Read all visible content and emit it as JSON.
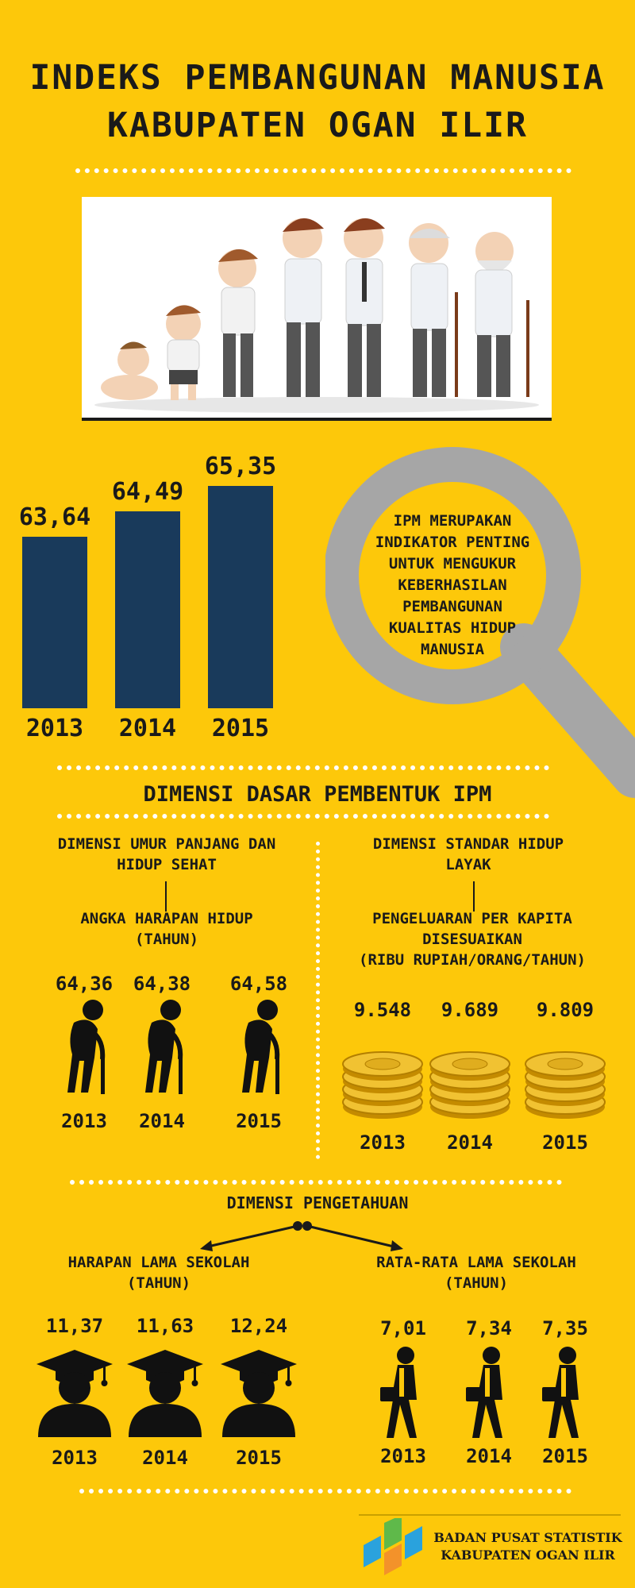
{
  "title": {
    "line1": "INDEKS PEMBANGUNAN MANUSIA",
    "line2": "KABUPATEN OGAN ILIR"
  },
  "colors": {
    "background": "#fdc80a",
    "bar": "#193a5b",
    "glass": "#a6a6a6"
  },
  "chart_data": {
    "type": "bar",
    "categories": [
      "2013",
      "2014",
      "2015"
    ],
    "values": [
      63.64,
      64.49,
      65.35
    ],
    "value_labels": [
      "63,64",
      "64,49",
      "65,35"
    ]
  },
  "magnifier_text": [
    "IPM MERUPAKAN",
    "INDIKATOR PENTING",
    "UNTUK MENGUKUR",
    "KEBERHASILAN",
    "PEMBANGUNAN",
    "KUALITAS HIDUP",
    "MANUSIA"
  ],
  "dimensions_heading": "DIMENSI DASAR PEMBENTUK IPM",
  "health": {
    "title_line1": "DIMENSI UMUR PANJANG DAN",
    "title_line2": "HIDUP SEHAT",
    "indicator_line1": "ANGKA HARAPAN HIDUP",
    "indicator_line2": "(TAHUN)",
    "values": [
      "64,36",
      "64,38",
      "64,58"
    ],
    "years": [
      "2013",
      "2014",
      "2015"
    ],
    "icon": "elderly-person-icon"
  },
  "living": {
    "title_line1": "DIMENSI STANDAR HIDUP",
    "title_line2": "LAYAK",
    "indicator_line1": "PENGELUARAN PER KAPITA",
    "indicator_line2": "DISESUAIKAN",
    "indicator_line3": "(RIBU RUPIAH/ORANG/TAHUN)",
    "values": [
      "9.548",
      "9.689",
      "9.809"
    ],
    "years": [
      "2013",
      "2014",
      "2015"
    ],
    "icon": "coin-stack-icon"
  },
  "knowledge": {
    "title": "DIMENSI PENGETAHUAN",
    "expected": {
      "line1": "HARAPAN LAMA SEKOLAH",
      "line2": "(TAHUN)",
      "values": [
        "11,37",
        "11,63",
        "12,24"
      ],
      "years": [
        "2013",
        "2014",
        "2015"
      ],
      "icon": "graduate-icon"
    },
    "mean": {
      "line1": "RATA-RATA LAMA SEKOLAH",
      "line2": "(TAHUN)",
      "values": [
        "7,01",
        "7,34",
        "7,35"
      ],
      "years": [
        "2013",
        "2014",
        "2015"
      ],
      "icon": "student-walking-icon"
    }
  },
  "footer": {
    "line1": "BADAN PUSAT STATISTIK",
    "line2": "KABUPATEN OGAN ILIR",
    "logo": "bps-logo-icon"
  }
}
